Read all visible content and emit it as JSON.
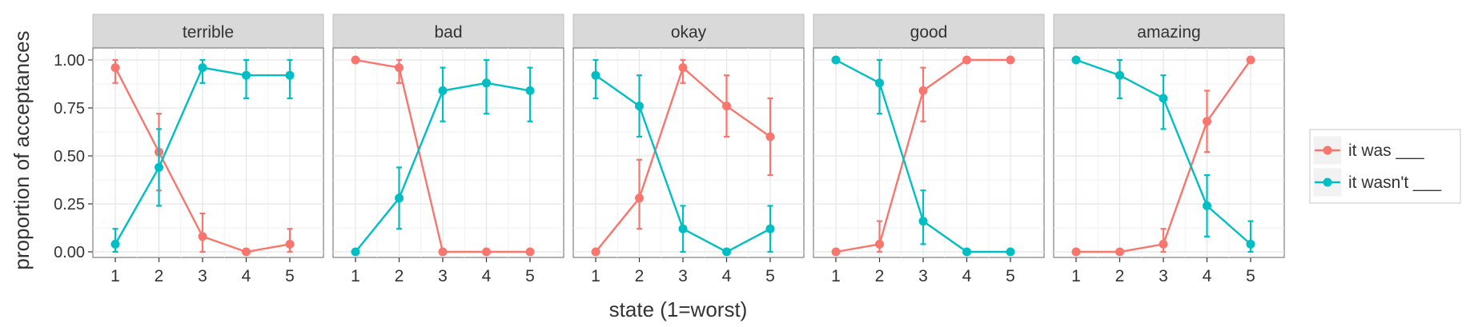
{
  "chart_data": {
    "type": "line",
    "facets": [
      "terrible",
      "bad",
      "okay",
      "good",
      "amazing"
    ],
    "x": [
      1,
      2,
      3,
      4,
      5
    ],
    "xlabel": "state (1=worst)",
    "ylabel": "proportion of acceptances",
    "ylim": [
      0,
      1
    ],
    "yticks": [
      0,
      0.25,
      0.5,
      0.75,
      1
    ],
    "ytick_labels": [
      "0.00",
      "0.25",
      "0.50",
      "0.75",
      "1.00"
    ],
    "legend_position": "right",
    "grid": true,
    "series": [
      {
        "name": "it was ___",
        "color": "#F8766D",
        "panels": {
          "terrible": {
            "values": [
              0.96,
              0.52,
              0.08,
              0.0,
              0.04
            ],
            "lower": [
              0.88,
              0.32,
              0.0,
              0.0,
              0.0
            ],
            "upper": [
              1.0,
              0.72,
              0.2,
              0.0,
              0.12
            ]
          },
          "bad": {
            "values": [
              1.0,
              0.96,
              0.0,
              0.0,
              0.0
            ],
            "lower": [
              1.0,
              0.88,
              0.0,
              0.0,
              0.0
            ],
            "upper": [
              1.0,
              1.0,
              0.0,
              0.0,
              0.0
            ]
          },
          "okay": {
            "values": [
              0.0,
              0.28,
              0.96,
              0.76,
              0.6
            ],
            "lower": [
              0.0,
              0.12,
              0.88,
              0.6,
              0.4
            ],
            "upper": [
              0.0,
              0.48,
              1.0,
              0.92,
              0.8
            ]
          },
          "good": {
            "values": [
              0.0,
              0.04,
              0.84,
              1.0,
              1.0
            ],
            "lower": [
              0.0,
              0.0,
              0.68,
              1.0,
              1.0
            ],
            "upper": [
              0.0,
              0.16,
              0.96,
              1.0,
              1.0
            ]
          },
          "amazing": {
            "values": [
              0.0,
              0.0,
              0.04,
              0.68,
              1.0
            ],
            "lower": [
              0.0,
              0.0,
              0.0,
              0.52,
              1.0
            ],
            "upper": [
              0.0,
              0.0,
              0.12,
              0.84,
              1.0
            ]
          }
        }
      },
      {
        "name": "it wasn't ___",
        "color": "#00BFC4",
        "panels": {
          "terrible": {
            "values": [
              0.04,
              0.44,
              0.96,
              0.92,
              0.92
            ],
            "lower": [
              0.0,
              0.24,
              0.88,
              0.8,
              0.8
            ],
            "upper": [
              0.12,
              0.64,
              1.0,
              1.0,
              1.0
            ]
          },
          "bad": {
            "values": [
              0.0,
              0.28,
              0.84,
              0.88,
              0.84
            ],
            "lower": [
              0.0,
              0.12,
              0.68,
              0.72,
              0.68
            ],
            "upper": [
              0.0,
              0.44,
              0.96,
              1.0,
              0.96
            ]
          },
          "okay": {
            "values": [
              0.92,
              0.76,
              0.12,
              0.0,
              0.12
            ],
            "lower": [
              0.8,
              0.6,
              0.0,
              0.0,
              0.0
            ],
            "upper": [
              1.0,
              0.92,
              0.24,
              0.0,
              0.24
            ]
          },
          "good": {
            "values": [
              1.0,
              0.88,
              0.16,
              0.0,
              0.0
            ],
            "lower": [
              1.0,
              0.72,
              0.04,
              0.0,
              0.0
            ],
            "upper": [
              1.0,
              1.0,
              0.32,
              0.0,
              0.0
            ]
          },
          "amazing": {
            "values": [
              1.0,
              0.92,
              0.8,
              0.24,
              0.04
            ],
            "lower": [
              1.0,
              0.8,
              0.64,
              0.08,
              0.0
            ],
            "upper": [
              1.0,
              1.0,
              0.92,
              0.4,
              0.16
            ]
          }
        }
      }
    ]
  }
}
